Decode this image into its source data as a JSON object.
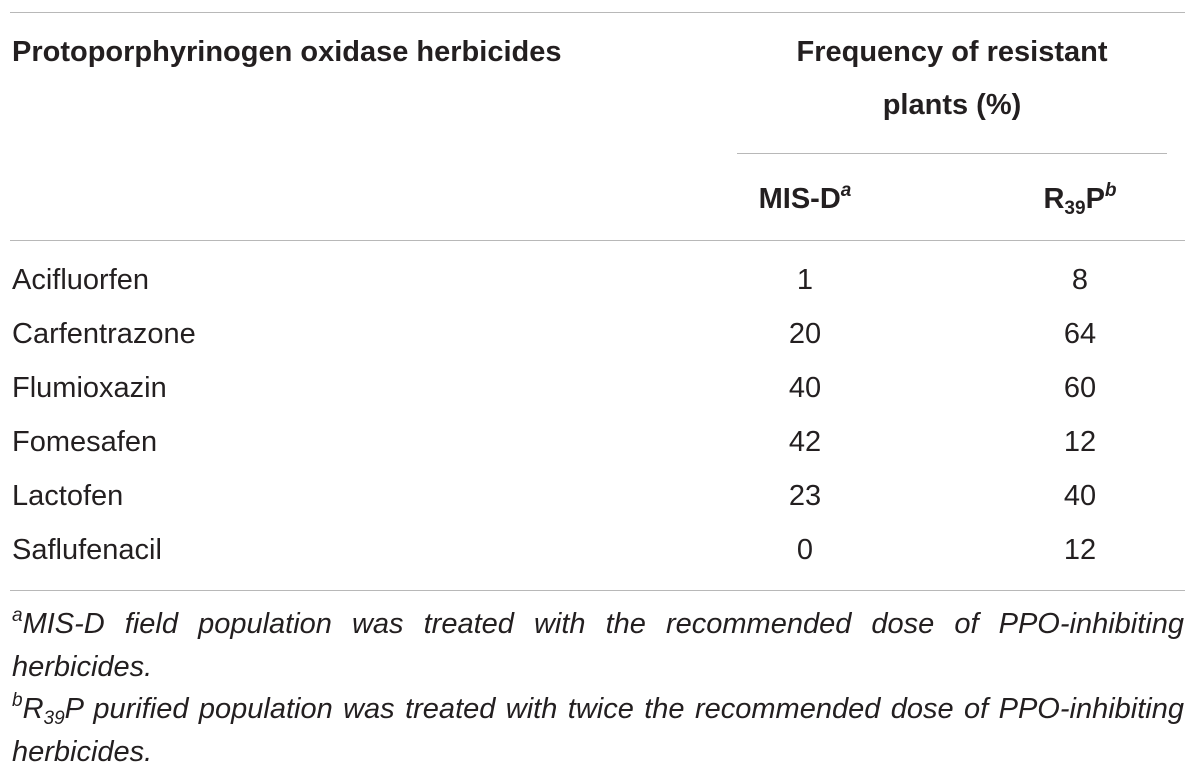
{
  "table": {
    "header": {
      "row_label": "Protoporphyrinogen oxidase herbicides",
      "group": "Frequency of resistant plants (%)",
      "columns": [
        {
          "text": "MIS-D",
          "sup": "a"
        },
        {
          "base": "R",
          "sub": "39",
          "rest": "P",
          "sup": "b"
        }
      ]
    },
    "rows": [
      [
        "Acifluorfen",
        1,
        8
      ],
      [
        "Carfentrazone",
        20,
        64
      ],
      [
        "Flumioxazin",
        40,
        60
      ],
      [
        "Fomesafen",
        42,
        12
      ],
      [
        "Lactofen",
        23,
        40
      ],
      [
        "Saflufenacil",
        0,
        12
      ]
    ],
    "footnotes": [
      {
        "mark": "a",
        "text": "MIS-D field population was treated with the recommended dose of PPO-inhibiting herbicides."
      },
      {
        "mark": "b",
        "base": "R",
        "sub": "39",
        "text": "P purified population was treated with twice the recommended dose of PPO-inhibiting herbicides."
      }
    ]
  }
}
